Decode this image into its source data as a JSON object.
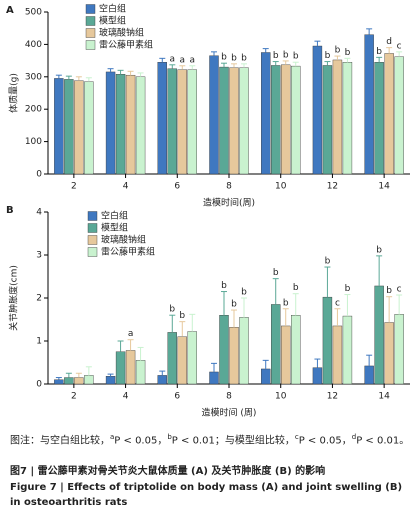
{
  "chart_data": [
    {
      "type": "bar",
      "panel": "A",
      "ylabel": "体质量(g)",
      "xlabel": "造模时间(周)",
      "categories": [
        "2",
        "4",
        "6",
        "8",
        "10",
        "12",
        "14"
      ],
      "ylim": [
        0,
        500
      ],
      "yticks": [
        0,
        100,
        200,
        300,
        400,
        500
      ],
      "series": [
        {
          "name": "空白组",
          "color": "#3f78c0",
          "values": [
            295,
            315,
            345,
            365,
            375,
            395,
            430
          ],
          "errors": [
            10,
            10,
            12,
            12,
            12,
            15,
            18
          ],
          "annotations": [
            null,
            null,
            null,
            null,
            null,
            null,
            null
          ]
        },
        {
          "name": "模型组",
          "color": "#5aa896",
          "values": [
            292,
            308,
            325,
            330,
            335,
            335,
            345
          ],
          "errors": [
            10,
            12,
            12,
            12,
            12,
            12,
            15
          ],
          "annotations": [
            null,
            null,
            "a",
            "b",
            "b",
            "b",
            "b"
          ]
        },
        {
          "name": "玻璃酸钠组",
          "color": "#e6c89c",
          "values": [
            288,
            305,
            322,
            328,
            337,
            352,
            372
          ],
          "errors": [
            12,
            12,
            12,
            12,
            12,
            12,
            18
          ],
          "annotations": [
            null,
            null,
            "a",
            "b",
            "b",
            "b",
            "d"
          ]
        },
        {
          "name": "雷公藤甲素组",
          "color": "#c9f2cf",
          "values": [
            285,
            300,
            322,
            328,
            333,
            345,
            362
          ],
          "errors": [
            12,
            12,
            12,
            12,
            12,
            12,
            15
          ],
          "annotations": [
            null,
            null,
            "a",
            "b",
            "b",
            "b",
            "c"
          ]
        }
      ]
    },
    {
      "type": "bar",
      "panel": "B",
      "ylabel": "关节肿胀度(cm)",
      "xlabel": "造模时间 (周)",
      "categories": [
        "2",
        "4",
        "6",
        "8",
        "10",
        "12",
        "14"
      ],
      "ylim": [
        0,
        4
      ],
      "yticks": [
        0,
        1,
        2,
        3,
        4
      ],
      "series": [
        {
          "name": "空白组",
          "color": "#3f78c0",
          "values": [
            0.1,
            0.18,
            0.2,
            0.28,
            0.35,
            0.38,
            0.42
          ],
          "errors": [
            0.05,
            0.05,
            0.1,
            0.2,
            0.2,
            0.2,
            0.25
          ],
          "annotations": [
            null,
            null,
            null,
            null,
            null,
            null,
            null
          ]
        },
        {
          "name": "模型组",
          "color": "#5aa896",
          "values": [
            0.15,
            0.75,
            1.2,
            1.6,
            1.85,
            2.02,
            2.28
          ],
          "errors": [
            0.1,
            0.25,
            0.4,
            0.55,
            0.6,
            0.7,
            0.7
          ],
          "annotations": [
            null,
            null,
            "b",
            "b",
            "b",
            "b",
            "b"
          ]
        },
        {
          "name": "玻璃酸钠组",
          "color": "#e6c89c",
          "values": [
            0.15,
            0.78,
            1.1,
            1.32,
            1.35,
            1.35,
            1.43
          ],
          "errors": [
            0.1,
            0.25,
            0.35,
            0.4,
            0.4,
            0.4,
            0.6
          ],
          "annotations": [
            null,
            "a",
            "b",
            "b",
            "b",
            "c",
            "b"
          ]
        },
        {
          "name": "雷公藤甲素组",
          "color": "#c9f2cf",
          "values": [
            0.2,
            0.55,
            1.22,
            1.55,
            1.6,
            1.58,
            1.62
          ],
          "errors": [
            0.2,
            0.3,
            0.4,
            0.45,
            0.5,
            0.5,
            0.45
          ],
          "annotations": [
            null,
            null,
            null,
            "b",
            "b",
            "b",
            "c"
          ]
        }
      ]
    }
  ],
  "caption": {
    "note": [
      "图注：与空白组比较，",
      "a",
      "P < 0.05，",
      "b",
      "P < 0.01；与模型组比较，",
      "c",
      "P < 0.05，",
      "d",
      "P < 0.01。"
    ],
    "title_cn": "图7 | 雷公藤甲素对骨关节炎大鼠体质量 (A) 及关节肿胀度 (B) 的影响",
    "title_en": "Figure 7 | Effects of triptolide on body mass (A) and joint swelling (B) in osteoarthritis rats"
  }
}
